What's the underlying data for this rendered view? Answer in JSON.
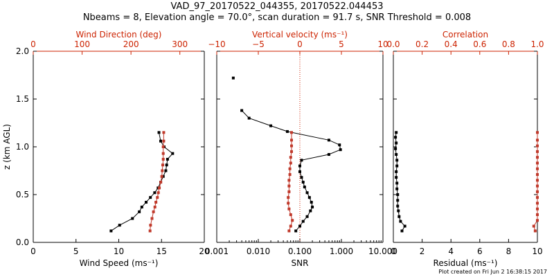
{
  "title_line1": "VAD_97_20170522_044355, 20170522.044453",
  "title_line2": "Nbeams = 8, Elevation angle = 70.0°, scan duration = 91.7 s, SNR Threshold = 0.008",
  "footer": "Plot created on Fri Jun  2 16:38:15 2017",
  "colors": {
    "axis": "#000000",
    "accent": "#cc2200",
    "primary_series": "#000000",
    "secondary_series": "#c0392b"
  },
  "chart_data": [
    {
      "type": "line",
      "ylabel": "z (km AGL)",
      "ylim": [
        0,
        2.0
      ],
      "yticks": [
        "0.0",
        "0.5",
        "1.0",
        "1.5",
        "2.0"
      ],
      "ytick_values": [
        0,
        0.5,
        1.0,
        1.5,
        2.0
      ],
      "xlabel": "Wind Speed (ms⁻¹)",
      "xlim": [
        0,
        20
      ],
      "xticks": [
        "0",
        "5",
        "10",
        "15",
        "20"
      ],
      "xtick_values": [
        0,
        5,
        10,
        15,
        20
      ],
      "top_xlabel": "Wind Direction (deg)",
      "top_xlim": [
        0,
        350
      ],
      "top_xticks": [
        "0",
        "100",
        "200",
        "300"
      ],
      "top_xtick_values": [
        0,
        100,
        200,
        300
      ],
      "series": [
        {
          "axis": "bottom",
          "color": "black",
          "x": [
            9.1,
            10.1,
            11.6,
            12.4,
            12.7,
            13.2,
            13.7,
            14.2,
            14.6,
            14.9,
            15.2,
            15.5,
            15.6,
            15.7,
            16.3,
            15.3,
            14.9,
            14.7
          ],
          "y": [
            0.12,
            0.18,
            0.25,
            0.32,
            0.37,
            0.42,
            0.47,
            0.52,
            0.57,
            0.63,
            0.69,
            0.75,
            0.81,
            0.87,
            0.93,
            1.0,
            1.06,
            1.15
          ]
        },
        {
          "axis": "top",
          "color": "red",
          "x": [
            239,
            240,
            243,
            246,
            249,
            251,
            254,
            256,
            258,
            261,
            263,
            264,
            265,
            266,
            266,
            266,
            267,
            267
          ],
          "y": [
            0.12,
            0.18,
            0.25,
            0.32,
            0.37,
            0.42,
            0.47,
            0.52,
            0.57,
            0.63,
            0.69,
            0.75,
            0.81,
            0.87,
            0.93,
            1.0,
            1.06,
            1.15
          ]
        }
      ]
    },
    {
      "type": "line",
      "xlabel": "SNR",
      "xscale": "log",
      "xlim": [
        0.001,
        10.0
      ],
      "xticks": [
        "0.001",
        "0.010",
        "0.100",
        "1.000",
        "10.000"
      ],
      "xtick_values": [
        0.001,
        0.01,
        0.1,
        1.0,
        10.0
      ],
      "top_xlabel": "Vertical velocity (ms⁻¹)",
      "top_xlim": [
        -10,
        10
      ],
      "top_xticks": [
        "−10",
        "−5",
        "0",
        "5",
        "10"
      ],
      "top_xtick_values": [
        -10,
        -5,
        0,
        5,
        10
      ],
      "ylim": [
        0,
        2.0
      ],
      "zero_line_top_x": 0,
      "series": [
        {
          "axis": "bottom",
          "color": "black",
          "x": [
            0.08,
            0.1,
            0.12,
            0.15,
            0.18,
            0.2,
            0.19,
            0.17,
            0.15,
            0.13,
            0.12,
            0.11,
            0.1,
            0.1,
            0.11,
            0.5,
            0.95,
            0.9,
            0.5,
            0.05,
            0.02,
            0.006,
            0.004
          ],
          "y": [
            0.12,
            0.17,
            0.22,
            0.27,
            0.33,
            0.37,
            0.42,
            0.47,
            0.52,
            0.58,
            0.63,
            0.68,
            0.74,
            0.8,
            0.86,
            0.92,
            0.97,
            1.02,
            1.07,
            1.16,
            1.22,
            1.3,
            1.38
          ]
        },
        {
          "axis": "bottom",
          "color": "black",
          "markers_only": true,
          "x": [
            0.0025
          ],
          "y": [
            1.72
          ]
        },
        {
          "axis": "top",
          "color": "red",
          "x": [
            -1.3,
            -1.1,
            -0.9,
            -1.1,
            -1.3,
            -1.4,
            -1.4,
            -1.3,
            -1.3,
            -1.3,
            -1.2,
            -1.2,
            -1.1,
            -1.1,
            -1.0,
            -1.0,
            -1.0,
            -1.0
          ],
          "y": [
            0.12,
            0.17,
            0.23,
            0.29,
            0.35,
            0.41,
            0.47,
            0.53,
            0.59,
            0.65,
            0.71,
            0.77,
            0.83,
            0.89,
            0.95,
            1.01,
            1.07,
            1.15
          ]
        }
      ]
    },
    {
      "type": "line",
      "xlabel": "Residual (ms⁻¹)",
      "xlim": [
        0,
        10
      ],
      "xticks": [
        "0",
        "2",
        "4",
        "6",
        "8",
        "10"
      ],
      "xtick_values": [
        0,
        2,
        4,
        6,
        8,
        10
      ],
      "top_xlabel": "Correlation",
      "top_xlim": [
        0,
        1.0
      ],
      "top_xticks": [
        "0.0",
        "0.2",
        "0.4",
        "0.6",
        "0.8",
        "1.0"
      ],
      "top_xtick_values": [
        0,
        0.2,
        0.4,
        0.6,
        0.8,
        1.0
      ],
      "ylim": [
        0,
        2.0
      ],
      "series": [
        {
          "axis": "bottom",
          "color": "black",
          "x": [
            0.6,
            0.8,
            0.5,
            0.4,
            0.35,
            0.3,
            0.3,
            0.3,
            0.25,
            0.25,
            0.2,
            0.2,
            0.25,
            0.25,
            0.2,
            0.15,
            0.2,
            0.15,
            0.2
          ],
          "y": [
            0.12,
            0.17,
            0.22,
            0.27,
            0.33,
            0.38,
            0.44,
            0.5,
            0.56,
            0.62,
            0.68,
            0.74,
            0.8,
            0.86,
            0.92,
            0.98,
            1.04,
            1.1,
            1.15
          ]
        },
        {
          "axis": "top",
          "color": "red",
          "x": [
            0.985,
            0.975,
            1.0,
            1.0,
            1.0,
            1.0,
            1.0,
            1.0,
            1.0,
            1.0,
            1.0,
            1.0,
            1.0,
            1.0,
            1.0,
            1.0,
            1.0,
            1.0
          ],
          "y": [
            0.12,
            0.17,
            0.23,
            0.29,
            0.35,
            0.41,
            0.47,
            0.53,
            0.59,
            0.65,
            0.71,
            0.77,
            0.83,
            0.89,
            0.95,
            1.01,
            1.07,
            1.15
          ]
        }
      ]
    }
  ]
}
